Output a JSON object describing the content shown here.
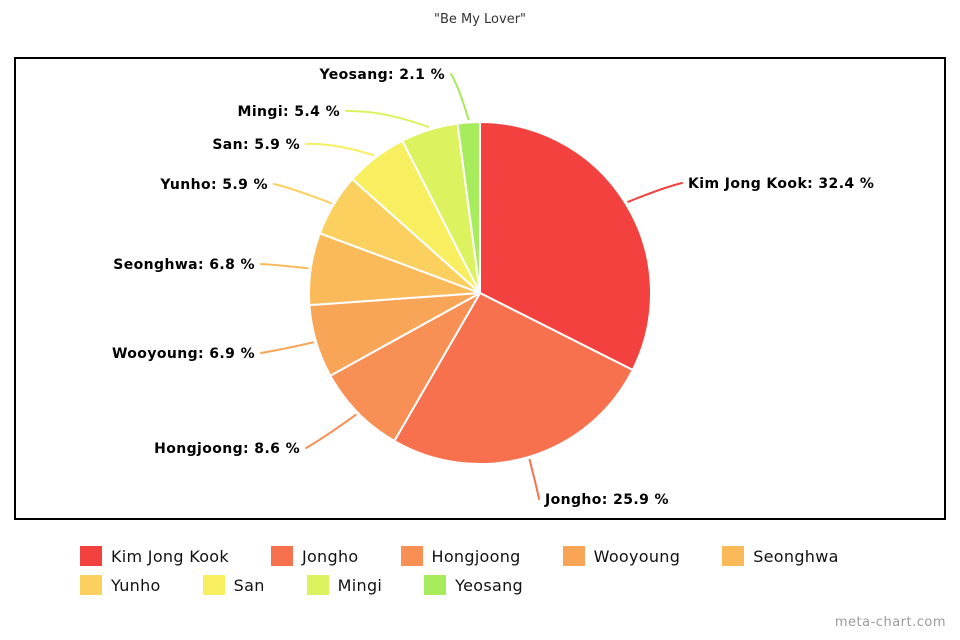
{
  "title": "\"Be My Lover\"",
  "watermark": "meta-chart.com",
  "chart_data": {
    "type": "pie",
    "title": "\"Be My Lover\"",
    "categories": [
      "Kim Jong Kook",
      "Jongho",
      "Hongjoong",
      "Wooyoung",
      "Seonghwa",
      "Yunho",
      "San",
      "Mingi",
      "Yeosang"
    ],
    "values": [
      32.4,
      25.9,
      8.6,
      6.9,
      6.8,
      5.9,
      5.9,
      5.4,
      2.1
    ],
    "colors": [
      "#F2413E",
      "#F7714F",
      "#F89055",
      "#F9A557",
      "#FABA5A",
      "#FBD05E",
      "#F7EF60",
      "#DDF25F",
      "#A7EC5D"
    ],
    "unit": "%",
    "label_format": "{category}: {value} %",
    "legend_position": "bottom",
    "slice_border_color": "#ffffff",
    "start_angle_deg": -90,
    "direction": "clockwise"
  }
}
